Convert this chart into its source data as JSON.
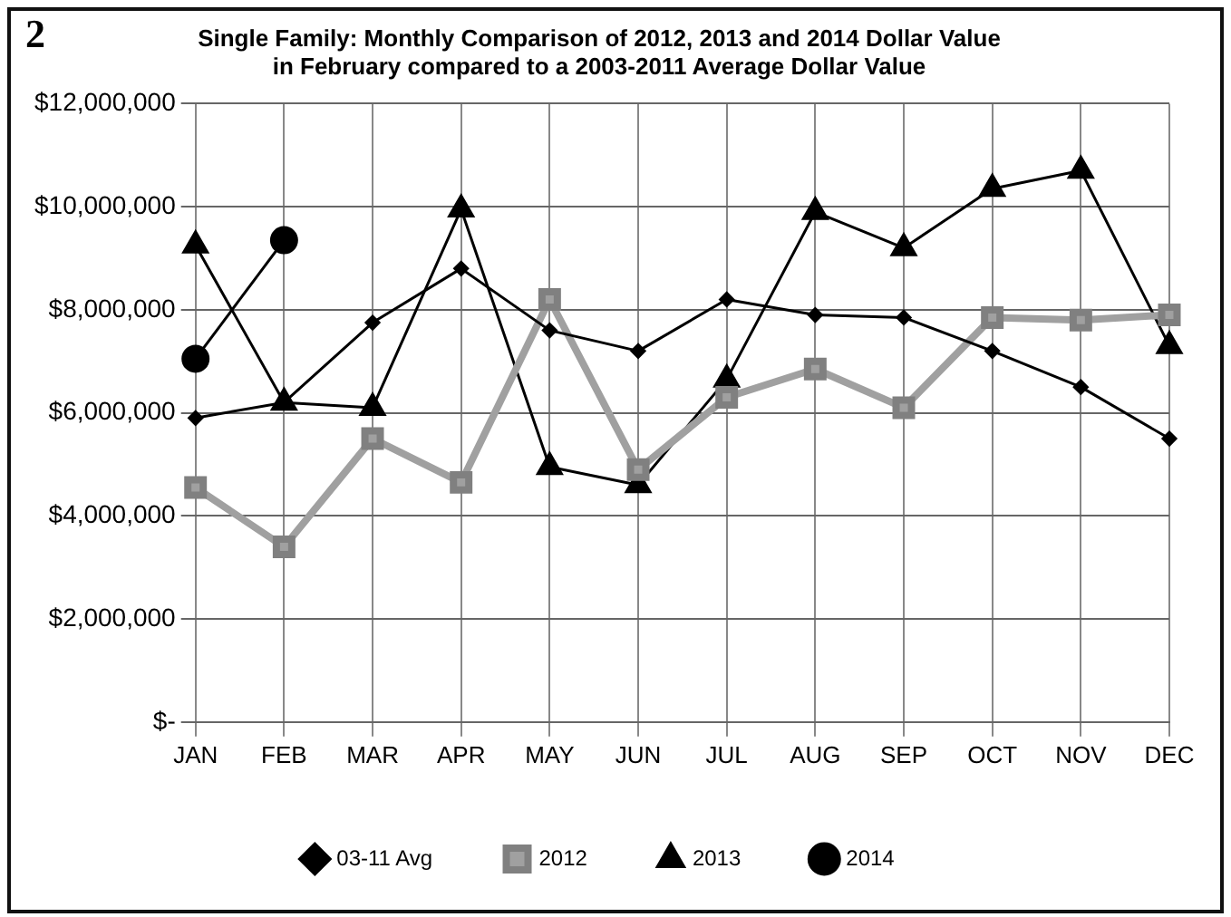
{
  "chart_data": {
    "type": "line",
    "title": "Single Family: Monthly Comparison of 2012, 2013 and 2014 Dollar Value\nin February compared to a 2003-2011 Average Dollar Value",
    "annotations": [
      "2"
    ],
    "categories": [
      "JAN",
      "FEB",
      "MAR",
      "APR",
      "MAY",
      "JUN",
      "JUL",
      "AUG",
      "SEP",
      "OCT",
      "NOV",
      "DEC"
    ],
    "series": [
      {
        "name": "03-11 Avg",
        "color": "#000000",
        "marker": "diamond",
        "values": [
          5900000,
          6200000,
          7750000,
          8800000,
          7600000,
          7200000,
          8200000,
          7900000,
          7850000,
          7200000,
          6500000,
          5500000
        ]
      },
      {
        "name": "2012",
        "color": "#a0a0a0",
        "marker": "square",
        "values": [
          4550000,
          3400000,
          5500000,
          4650000,
          8200000,
          4900000,
          6300000,
          6850000,
          6100000,
          7850000,
          7800000,
          7900000
        ]
      },
      {
        "name": "2013",
        "color": "#000000",
        "marker": "triangle",
        "values": [
          9250000,
          6200000,
          6100000,
          9950000,
          4950000,
          4600000,
          6650000,
          9900000,
          9200000,
          10350000,
          10700000,
          7300000
        ]
      },
      {
        "name": "2014",
        "color": "#000000",
        "marker": "circle",
        "values": [
          7050000,
          9350000,
          null,
          null,
          null,
          null,
          null,
          null,
          null,
          null,
          null,
          null
        ]
      }
    ],
    "ylim": [
      0,
      12000000
    ],
    "yticks": [
      {
        "value": 0,
        "label": "$-"
      },
      {
        "value": 2000000,
        "label": "$2,000,000"
      },
      {
        "value": 4000000,
        "label": "$4,000,000"
      },
      {
        "value": 6000000,
        "label": "$6,000,000"
      },
      {
        "value": 8000000,
        "label": "$8,000,000"
      },
      {
        "value": 10000000,
        "label": "$10,000,000"
      },
      {
        "value": 12000000,
        "label": "$12,000,000"
      }
    ],
    "grid": true,
    "legend": "bottom"
  }
}
